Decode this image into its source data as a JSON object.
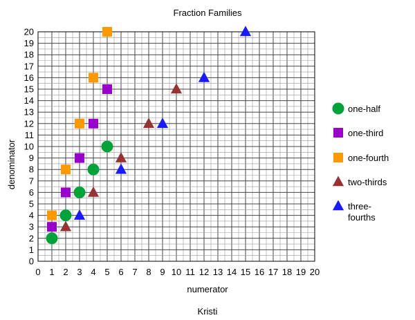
{
  "chart_data": {
    "type": "scatter",
    "title": "Fraction Families",
    "xlabel": "numerator",
    "ylabel": "denominator",
    "caption": "Kristi",
    "xlim": [
      0,
      20
    ],
    "ylim": [
      0,
      20
    ],
    "major_tick_step": 1,
    "minor_divisions": 2,
    "grid": true,
    "legend_position": "right",
    "series": [
      {
        "name": "one-half",
        "marker": "circle",
        "color": "#00a339",
        "points": [
          [
            1,
            2
          ],
          [
            2,
            4
          ],
          [
            3,
            6
          ],
          [
            4,
            8
          ],
          [
            5,
            10
          ]
        ]
      },
      {
        "name": "one-third",
        "marker": "square",
        "color": "#9900cc",
        "points": [
          [
            1,
            3
          ],
          [
            2,
            6
          ],
          [
            3,
            9
          ],
          [
            4,
            12
          ],
          [
            5,
            15
          ]
        ]
      },
      {
        "name": "one-fourth",
        "marker": "square",
        "color": "#ff9900",
        "points": [
          [
            1,
            4
          ],
          [
            2,
            8
          ],
          [
            3,
            12
          ],
          [
            4,
            16
          ],
          [
            5,
            20
          ]
        ]
      },
      {
        "name": "two-thirds",
        "marker": "triangle",
        "color": "#993333",
        "points": [
          [
            2,
            3
          ],
          [
            4,
            6
          ],
          [
            6,
            9
          ],
          [
            8,
            12
          ],
          [
            10,
            15
          ]
        ]
      },
      {
        "name": "three-\nfourths",
        "marker": "triangle",
        "color": "#1a1aff",
        "points": [
          [
            3,
            4
          ],
          [
            6,
            8
          ],
          [
            9,
            12
          ],
          [
            12,
            16
          ],
          [
            15,
            20
          ]
        ]
      }
    ]
  }
}
